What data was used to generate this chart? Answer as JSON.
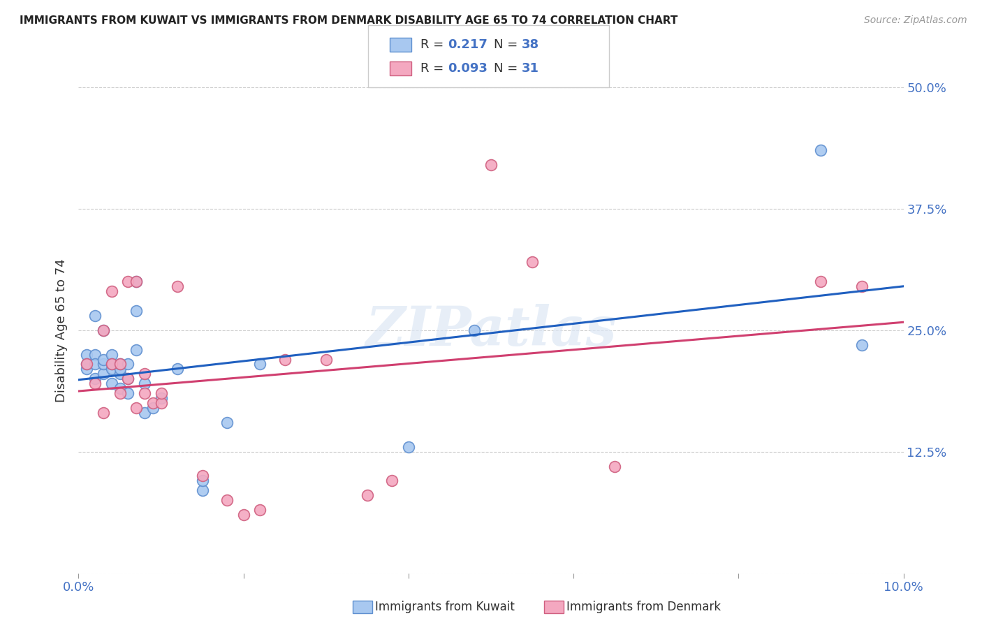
{
  "title": "IMMIGRANTS FROM KUWAIT VS IMMIGRANTS FROM DENMARK DISABILITY AGE 65 TO 74 CORRELATION CHART",
  "source": "Source: ZipAtlas.com",
  "ylabel": "Disability Age 65 to 74",
  "xlim": [
    0.0,
    0.1
  ],
  "ylim": [
    0.0,
    0.5
  ],
  "xticks": [
    0.0,
    0.02,
    0.04,
    0.06,
    0.08,
    0.1
  ],
  "xticklabels": [
    "0.0%",
    "",
    "",
    "",
    "",
    "10.0%"
  ],
  "yticks": [
    0.0,
    0.125,
    0.25,
    0.375,
    0.5
  ],
  "yticklabels": [
    "",
    "12.5%",
    "25.0%",
    "37.5%",
    "50.0%"
  ],
  "kuwait_color": "#A8C8F0",
  "denmark_color": "#F4A8C0",
  "kuwait_edge_color": "#6090D0",
  "denmark_edge_color": "#D06080",
  "line_kuwait_color": "#2060C0",
  "line_denmark_color": "#D04070",
  "watermark": "ZIPatlas",
  "legend_kuwait_R": "0.217",
  "legend_kuwait_N": "38",
  "legend_denmark_R": "0.093",
  "legend_denmark_N": "31",
  "legend_text_color": "#4472C4",
  "tick_label_color": "#4472C4",
  "kuwait_x": [
    0.001,
    0.001,
    0.001,
    0.002,
    0.002,
    0.002,
    0.002,
    0.003,
    0.003,
    0.003,
    0.003,
    0.004,
    0.004,
    0.004,
    0.004,
    0.005,
    0.005,
    0.005,
    0.005,
    0.006,
    0.006,
    0.006,
    0.007,
    0.007,
    0.007,
    0.008,
    0.008,
    0.009,
    0.01,
    0.012,
    0.015,
    0.015,
    0.018,
    0.022,
    0.04,
    0.048,
    0.09,
    0.095
  ],
  "kuwait_y": [
    0.21,
    0.225,
    0.215,
    0.2,
    0.225,
    0.215,
    0.265,
    0.205,
    0.215,
    0.22,
    0.25,
    0.195,
    0.21,
    0.225,
    0.215,
    0.19,
    0.205,
    0.21,
    0.215,
    0.185,
    0.2,
    0.215,
    0.23,
    0.27,
    0.3,
    0.195,
    0.165,
    0.17,
    0.18,
    0.21,
    0.085,
    0.095,
    0.155,
    0.215,
    0.13,
    0.25,
    0.435,
    0.235
  ],
  "denmark_x": [
    0.001,
    0.002,
    0.003,
    0.003,
    0.004,
    0.004,
    0.005,
    0.005,
    0.006,
    0.006,
    0.007,
    0.007,
    0.008,
    0.008,
    0.009,
    0.01,
    0.01,
    0.012,
    0.015,
    0.018,
    0.02,
    0.022,
    0.025,
    0.03,
    0.035,
    0.038,
    0.05,
    0.055,
    0.065,
    0.09,
    0.095
  ],
  "denmark_y": [
    0.215,
    0.195,
    0.165,
    0.25,
    0.215,
    0.29,
    0.185,
    0.215,
    0.2,
    0.3,
    0.17,
    0.3,
    0.205,
    0.185,
    0.175,
    0.175,
    0.185,
    0.295,
    0.1,
    0.075,
    0.06,
    0.065,
    0.22,
    0.22,
    0.08,
    0.095,
    0.42,
    0.32,
    0.11,
    0.3,
    0.295
  ],
  "marker_size": 130,
  "background_color": "#ffffff",
  "grid_color": "#cccccc"
}
